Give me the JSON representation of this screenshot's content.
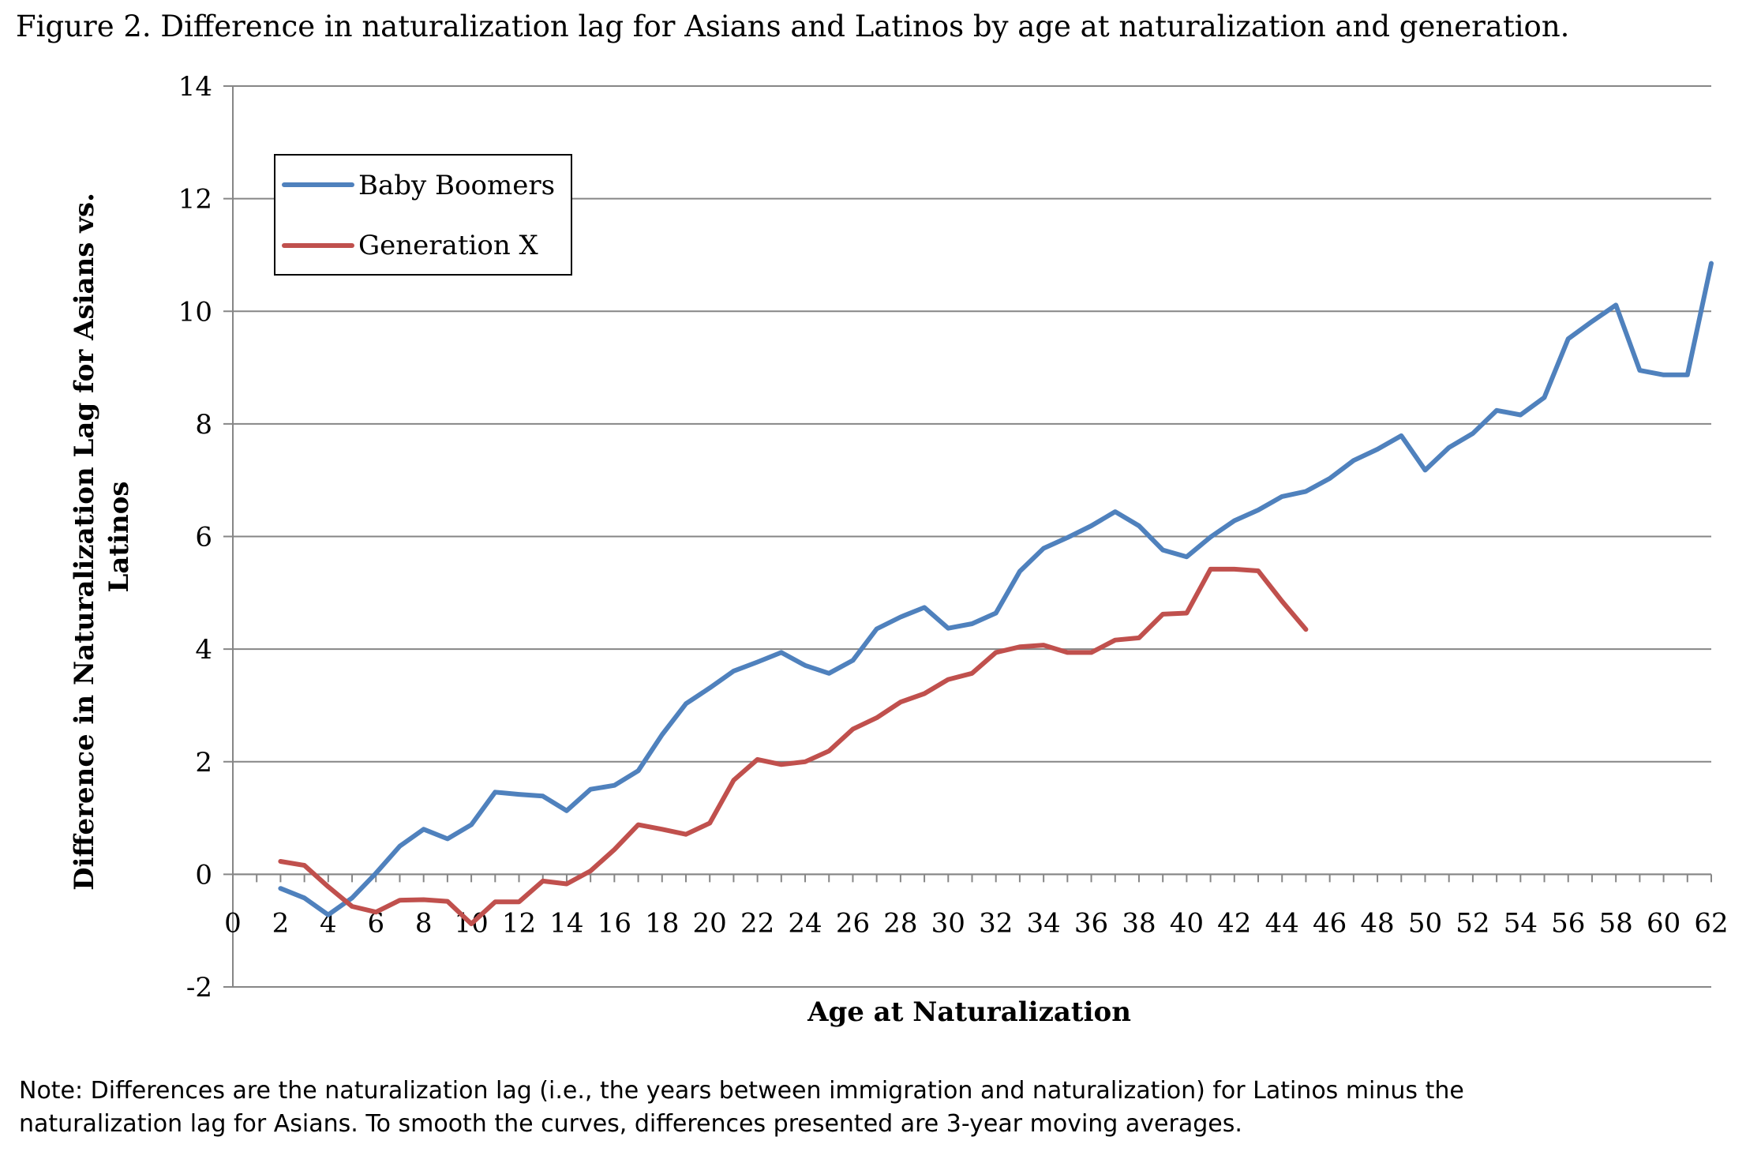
{
  "title": "Figure 2. Difference in naturalization lag for Asians and Latinos by age at naturalization and generation.",
  "note_line1": "Note:  Differences are the naturalization lag (i.e., the years between immigration and naturalization) for Latinos minus the",
  "note_line2": "naturalization lag for Asians.  To smooth the curves, differences presented are 3-year moving averages.",
  "chart_data": {
    "type": "line",
    "title": "",
    "xlabel": "Age at Naturalization",
    "ylabel": "Difference in Naturalization Lag for Asians vs. Latinos",
    "ylabel_lines": [
      "Difference in Naturalization Lag for Asians vs.",
      "Latinos"
    ],
    "xlim": [
      0,
      62
    ],
    "ylim": [
      -2,
      14
    ],
    "y_ticks": [
      -2,
      0,
      2,
      4,
      6,
      8,
      10,
      12,
      14
    ],
    "x_ticks": [
      0,
      2,
      4,
      6,
      8,
      10,
      12,
      14,
      16,
      18,
      20,
      22,
      24,
      26,
      28,
      30,
      32,
      34,
      36,
      38,
      40,
      42,
      44,
      46,
      48,
      50,
      52,
      54,
      56,
      58,
      60,
      62
    ],
    "grid": "horizontal",
    "legend_position": "top-left",
    "series": [
      {
        "name": "Baby Boomers",
        "color": "#4F81BD",
        "x": [
          2,
          3,
          4,
          5,
          6,
          7,
          8,
          9,
          10,
          11,
          12,
          13,
          14,
          15,
          16,
          17,
          18,
          19,
          20,
          21,
          22,
          23,
          24,
          25,
          26,
          27,
          28,
          29,
          30,
          31,
          32,
          33,
          34,
          35,
          36,
          37,
          38,
          39,
          40,
          41,
          42,
          43,
          44,
          45,
          46,
          47,
          48,
          49,
          50,
          51,
          52,
          53,
          54,
          55,
          56,
          57,
          58,
          59,
          60,
          61,
          62
        ],
        "values": [
          -0.25,
          -0.42,
          -0.72,
          -0.42,
          0.02,
          0.5,
          0.8,
          0.63,
          0.88,
          1.46,
          1.42,
          1.39,
          1.13,
          1.51,
          1.58,
          1.84,
          2.48,
          3.03,
          3.31,
          3.61,
          3.77,
          3.94,
          3.71,
          3.57,
          3.8,
          4.36,
          4.57,
          4.74,
          4.37,
          4.45,
          4.64,
          5.38,
          5.79,
          5.98,
          6.19,
          6.44,
          6.19,
          5.76,
          5.64,
          5.99,
          6.28,
          6.47,
          6.71,
          6.8,
          7.03,
          7.35,
          7.55,
          7.79,
          7.18,
          7.58,
          7.83,
          8.24,
          8.16,
          8.47,
          9.51,
          9.82,
          10.11,
          8.95,
          8.87,
          8.87,
          10.85
        ]
      },
      {
        "name": "Generation X",
        "color": "#C0504D",
        "x": [
          2,
          3,
          4,
          5,
          6,
          7,
          8,
          9,
          10,
          11,
          12,
          13,
          14,
          15,
          16,
          17,
          18,
          19,
          20,
          21,
          22,
          23,
          24,
          25,
          26,
          27,
          28,
          29,
          30,
          31,
          32,
          33,
          34,
          35,
          36,
          37,
          38,
          39,
          40,
          41,
          42,
          43,
          44,
          45
        ],
        "values": [
          0.23,
          0.16,
          -0.22,
          -0.57,
          -0.67,
          -0.46,
          -0.45,
          -0.48,
          -0.88,
          -0.49,
          -0.49,
          -0.12,
          -0.17,
          0.06,
          0.44,
          0.88,
          0.8,
          0.71,
          0.91,
          1.67,
          2.04,
          1.95,
          2.0,
          2.19,
          2.58,
          2.78,
          3.06,
          3.21,
          3.46,
          3.57,
          3.94,
          4.04,
          4.07,
          3.94,
          3.94,
          4.16,
          4.2,
          4.62,
          4.64,
          5.42,
          5.42,
          5.39,
          4.85,
          4.35
        ]
      }
    ]
  }
}
